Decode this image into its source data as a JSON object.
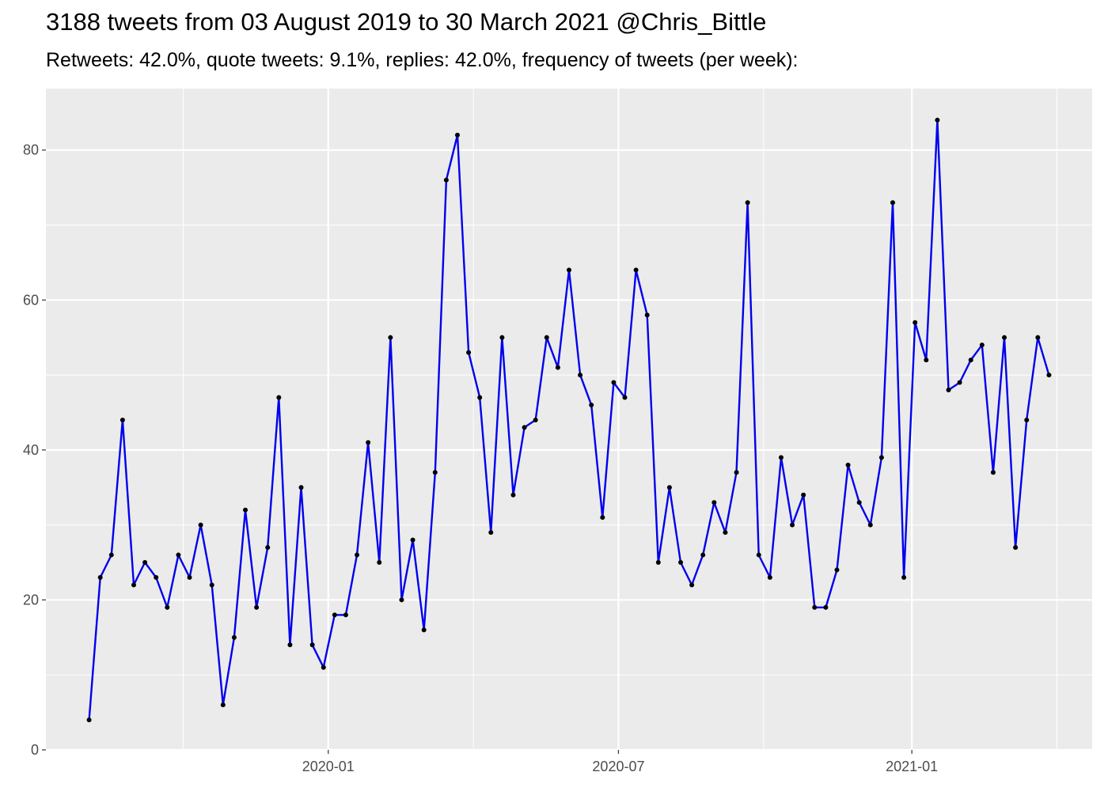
{
  "title": "3188 tweets from 03 August 2019 to 30 March 2021 @Chris_Bittle",
  "subtitle": "Retweets: 42.0%, quote tweets: 9.1%, replies: 42.0%, frequency of tweets (per week):",
  "colors": {
    "line": "#0000ee",
    "point": "#000000",
    "panel": "#ebebeb",
    "grid": "#ffffff"
  },
  "chart_data": {
    "type": "line",
    "title": "3188 tweets from 03 August 2019 to 30 March 2021 @Chris_Bittle",
    "subtitle": "Retweets: 42.0%, quote tweets: 9.1%, replies: 42.0%, frequency of tweets (per week):",
    "xlabel": "",
    "ylabel": "",
    "x_start": "2019-08-04",
    "x_step_days": 7,
    "x_ticks": [
      {
        "label": "2020-01",
        "date": "2020-01-01"
      },
      {
        "label": "2020-07",
        "date": "2020-07-01"
      },
      {
        "label": "2021-01",
        "date": "2021-01-01"
      }
    ],
    "y_ticks": [
      0,
      20,
      40,
      60,
      80
    ],
    "ylim": [
      0,
      85
    ],
    "grid": true,
    "legend": "none",
    "series": [
      {
        "values": [
          4,
          23,
          26,
          44,
          22,
          25,
          23,
          19,
          26,
          23,
          30,
          22,
          6,
          15,
          32,
          19,
          27,
          47,
          14,
          35,
          14,
          11,
          18,
          18,
          26,
          41,
          25,
          55,
          20,
          28,
          16,
          37,
          76,
          82,
          53,
          47,
          29,
          55,
          34,
          43,
          44,
          55,
          51,
          64,
          50,
          46,
          31,
          49,
          47,
          64,
          58,
          25,
          35,
          25,
          22,
          26,
          33,
          29,
          37,
          73,
          26,
          23,
          39,
          30,
          34,
          19,
          19,
          24,
          38,
          33,
          30,
          39,
          73,
          23,
          57,
          52,
          84,
          48,
          49,
          52,
          54,
          37,
          55,
          27,
          44,
          55,
          50
        ]
      }
    ]
  }
}
